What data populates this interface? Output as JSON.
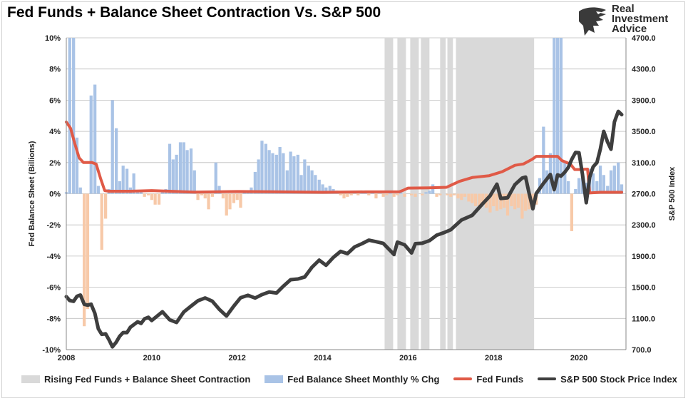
{
  "title": "Fed Funds + Balance Sheet Contraction Vs. S&P 500",
  "logo": {
    "line1": "Real",
    "line2": "Investment",
    "line3": "Advice",
    "icon": "eagle-head-icon"
  },
  "colors": {
    "shade": "#d9d9d9",
    "bar_pos": "#a9c3e6",
    "bar_neg": "#f7c9a8",
    "fed_funds": "#e05a47",
    "spx": "#3e3e3e"
  },
  "chart_data": {
    "type": "bar+line",
    "title": "Fed Funds + Balance Sheet Contraction Vs. S&P 500",
    "xlabel": "",
    "ylabel": "Fed Balance Sheet (Billions)",
    "y2label": "S&P 500 Index",
    "xlim": [
      2008,
      2021.1
    ],
    "ylim": [
      -10,
      10
    ],
    "y2lim": [
      700,
      4700
    ],
    "x_ticks": [
      "2008",
      "2010",
      "2012",
      "2014",
      "2016",
      "2018",
      "2020"
    ],
    "y_ticks": [
      "-10%",
      "-8%",
      "-6%",
      "-4%",
      "-2%",
      "0%",
      "2%",
      "4%",
      "6%",
      "8%",
      "10%"
    ],
    "y2_ticks": [
      "700.0",
      "1100.0",
      "1500.0",
      "1900.0",
      "2300.0",
      "2700.0",
      "3100.0",
      "3500.0",
      "3900.0",
      "4300.0",
      "4700.0"
    ],
    "grid": true,
    "legend_position": "bottom",
    "shaded_periods": [
      [
        2015.45,
        2015.65
      ],
      [
        2015.75,
        2015.95
      ],
      [
        2016.05,
        2016.25
      ],
      [
        2016.3,
        2016.5
      ],
      [
        2016.75,
        2016.88
      ],
      [
        2016.92,
        2017.05
      ],
      [
        2017.12,
        2018.95
      ]
    ],
    "balance_sheet_pct_chg": {
      "name": "Fed Balance Sheet Monthly % Chg",
      "x": [
        2008.0,
        2008.08,
        2008.17,
        2008.25,
        2008.33,
        2008.42,
        2008.5,
        2008.58,
        2008.67,
        2008.75,
        2008.83,
        2008.92,
        2009.0,
        2009.08,
        2009.17,
        2009.25,
        2009.33,
        2009.42,
        2009.5,
        2009.58,
        2009.67,
        2009.75,
        2009.83,
        2009.92,
        2010.0,
        2010.08,
        2010.17,
        2010.25,
        2010.33,
        2010.42,
        2010.5,
        2010.58,
        2010.67,
        2010.75,
        2010.83,
        2010.92,
        2011.0,
        2011.08,
        2011.17,
        2011.25,
        2011.33,
        2011.42,
        2011.5,
        2011.58,
        2011.67,
        2011.75,
        2011.83,
        2011.92,
        2012.0,
        2012.08,
        2012.17,
        2012.25,
        2012.33,
        2012.42,
        2012.5,
        2012.58,
        2012.67,
        2012.75,
        2012.83,
        2012.92,
        2013.0,
        2013.08,
        2013.17,
        2013.25,
        2013.33,
        2013.42,
        2013.5,
        2013.58,
        2013.67,
        2013.75,
        2013.83,
        2013.92,
        2014.0,
        2014.08,
        2014.17,
        2014.25,
        2014.33,
        2014.42,
        2014.5,
        2014.58,
        2014.67,
        2014.75,
        2014.83,
        2014.92,
        2015.0,
        2015.08,
        2015.17,
        2015.25,
        2015.33,
        2015.42,
        2015.5,
        2015.58,
        2015.67,
        2015.75,
        2015.83,
        2015.92,
        2016.0,
        2016.08,
        2016.17,
        2016.25,
        2016.33,
        2016.42,
        2016.5,
        2016.58,
        2016.67,
        2016.75,
        2016.83,
        2016.92,
        2017.0,
        2017.08,
        2017.17,
        2017.25,
        2017.33,
        2017.42,
        2017.5,
        2017.58,
        2017.67,
        2017.75,
        2017.83,
        2017.92,
        2018.0,
        2018.08,
        2018.17,
        2018.25,
        2018.33,
        2018.42,
        2018.5,
        2018.58,
        2018.67,
        2018.75,
        2018.83,
        2018.92,
        2019.0,
        2019.08,
        2019.17,
        2019.25,
        2019.33,
        2019.42,
        2019.5,
        2019.58,
        2019.67,
        2019.75,
        2019.83,
        2019.92,
        2020.0,
        2020.08,
        2020.17,
        2020.25,
        2020.33,
        2020.42,
        2020.5,
        2020.58,
        2020.67,
        2020.75,
        2020.83,
        2020.92,
        2021.0
      ],
      "values": [
        0.1,
        10.5,
        10.5,
        3.6,
        0.4,
        -8.5,
        -7.4,
        6.3,
        7.0,
        0.5,
        -3.6,
        -1.6,
        0.3,
        6.0,
        4.2,
        0.8,
        1.8,
        1.6,
        0.4,
        1.3,
        0.2,
        0.1,
        -0.2,
        -0.1,
        -0.4,
        -0.7,
        -0.7,
        0.1,
        0.3,
        3.2,
        2.2,
        2.5,
        3.3,
        3.3,
        2.8,
        2.9,
        1.5,
        -0.4,
        -0.1,
        -0.3,
        -1.0,
        -0.2,
        2.0,
        0.5,
        -0.3,
        -1.4,
        -1.0,
        -0.6,
        -0.4,
        -0.9,
        0.1,
        0.2,
        0.4,
        1.4,
        2.2,
        3.4,
        3.2,
        2.8,
        2.6,
        2.5,
        3.0,
        2.6,
        1.5,
        2.7,
        2.4,
        2.5,
        1.2,
        2.2,
        1.8,
        1.5,
        1.2,
        0.9,
        0.6,
        0.4,
        0.5,
        0.3,
        0.2,
        -0.1,
        -0.3,
        -0.2,
        -0.1,
        0.0,
        -0.1,
        0.1,
        0.2,
        -0.1,
        0.1,
        -0.3,
        0.0,
        -0.2,
        -0.1,
        0.1,
        -0.2,
        -0.1,
        0.1,
        -0.2,
        0.0,
        -0.1,
        -0.2,
        0.0,
        -0.1,
        0.1,
        0.2,
        0.6,
        -0.2,
        -0.1,
        0.0,
        -0.1,
        -0.2,
        -0.1,
        -0.3,
        -0.4,
        -0.2,
        -0.5,
        -0.6,
        -0.8,
        -1.0,
        -0.6,
        -0.9,
        -1.2,
        -0.8,
        -1.1,
        -1.0,
        -0.9,
        -1.4,
        -0.8,
        -1.0,
        -0.9,
        -1.6,
        -1.1,
        -1.0,
        -0.8,
        -0.7,
        1.0,
        4.3,
        1.5,
        2.6,
        10.5,
        10.5,
        10.5,
        2.1,
        0.8,
        -2.4,
        0.3,
        1.0,
        1.3,
        0.7,
        1.6,
        1.3,
        0.8,
        1.8,
        1.2,
        0.5,
        1.5,
        1.8,
        2.0,
        0.6
      ]
    },
    "fed_funds": {
      "name": "Fed Funds",
      "x": [
        2008.0,
        2008.1,
        2008.2,
        2008.3,
        2008.4,
        2008.5,
        2008.6,
        2008.7,
        2008.8,
        2008.9,
        2009.0,
        2009.5,
        2010.0,
        2011.0,
        2012.0,
        2013.0,
        2014.0,
        2015.0,
        2015.8,
        2015.9,
        2016.0,
        2016.5,
        2016.9,
        2017.0,
        2017.2,
        2017.5,
        2017.9,
        2018.2,
        2018.5,
        2018.7,
        2018.9,
        2019.0,
        2019.3,
        2019.5,
        2019.6,
        2019.8,
        2019.9,
        2020.0,
        2020.2,
        2020.25,
        2020.5,
        2021.0
      ],
      "values": [
        4.6,
        4.2,
        3.2,
        2.3,
        2.0,
        2.0,
        2.0,
        1.9,
        1.0,
        0.2,
        0.16,
        0.16,
        0.2,
        0.1,
        0.14,
        0.12,
        0.09,
        0.12,
        0.13,
        0.24,
        0.36,
        0.38,
        0.41,
        0.54,
        0.79,
        1.04,
        1.16,
        1.41,
        1.82,
        1.91,
        2.2,
        2.4,
        2.4,
        2.4,
        2.13,
        1.9,
        1.55,
        1.55,
        1.58,
        0.05,
        0.09,
        0.09
      ]
    },
    "spx": {
      "name": "S&P 500 Stock Price Index",
      "x": [
        2008.0,
        2008.08,
        2008.17,
        2008.25,
        2008.33,
        2008.42,
        2008.5,
        2008.58,
        2008.67,
        2008.75,
        2008.83,
        2008.92,
        2009.0,
        2009.08,
        2009.17,
        2009.25,
        2009.33,
        2009.42,
        2009.5,
        2009.58,
        2009.67,
        2009.75,
        2009.83,
        2009.92,
        2010.0,
        2010.25,
        2010.42,
        2010.58,
        2010.75,
        2010.92,
        2011.08,
        2011.25,
        2011.42,
        2011.58,
        2011.75,
        2011.92,
        2012.08,
        2012.25,
        2012.42,
        2012.58,
        2012.75,
        2012.92,
        2013.08,
        2013.25,
        2013.42,
        2013.58,
        2013.75,
        2013.92,
        2014.08,
        2014.25,
        2014.42,
        2014.58,
        2014.75,
        2014.92,
        2015.08,
        2015.25,
        2015.42,
        2015.58,
        2015.67,
        2015.75,
        2015.92,
        2016.08,
        2016.17,
        2016.33,
        2016.5,
        2016.67,
        2016.83,
        2017.0,
        2017.25,
        2017.5,
        2017.75,
        2017.92,
        2018.08,
        2018.17,
        2018.33,
        2018.5,
        2018.67,
        2018.75,
        2018.83,
        2018.92,
        2019.0,
        2019.17,
        2019.33,
        2019.42,
        2019.5,
        2019.58,
        2019.67,
        2019.75,
        2019.83,
        2019.92,
        2020.0,
        2020.08,
        2020.17,
        2020.25,
        2020.33,
        2020.42,
        2020.5,
        2020.58,
        2020.67,
        2020.75,
        2020.83,
        2020.92,
        2021.0
      ],
      "values": [
        1380,
        1330,
        1320,
        1385,
        1400,
        1280,
        1270,
        1283,
        1165,
        968,
        896,
        903,
        826,
        736,
        797,
        872,
        919,
        919,
        987,
        1020,
        1057,
        1036,
        1095,
        1115,
        1073,
        1186,
        1083,
        1049,
        1183,
        1258,
        1327,
        1363,
        1321,
        1218,
        1131,
        1258,
        1366,
        1397,
        1362,
        1406,
        1440,
        1426,
        1514,
        1597,
        1606,
        1632,
        1757,
        1848,
        1782,
        1883,
        1960,
        1931,
        2018,
        2059,
        2104,
        2085,
        2063,
        1972,
        1920,
        2079,
        2044,
        1940,
        2059,
        2065,
        2099,
        2168,
        2198,
        2238,
        2363,
        2423,
        2575,
        2673,
        2823,
        2640,
        2648,
        2816,
        2901,
        2913,
        2711,
        2507,
        2704,
        2834,
        2946,
        2752,
        2942,
        2926,
        2977,
        3037,
        3140,
        3230,
        3225,
        2954,
        2585,
        2912,
        3044,
        3100,
        3271,
        3500,
        3363,
        3270,
        3621,
        3756,
        3714
      ]
    }
  }
}
